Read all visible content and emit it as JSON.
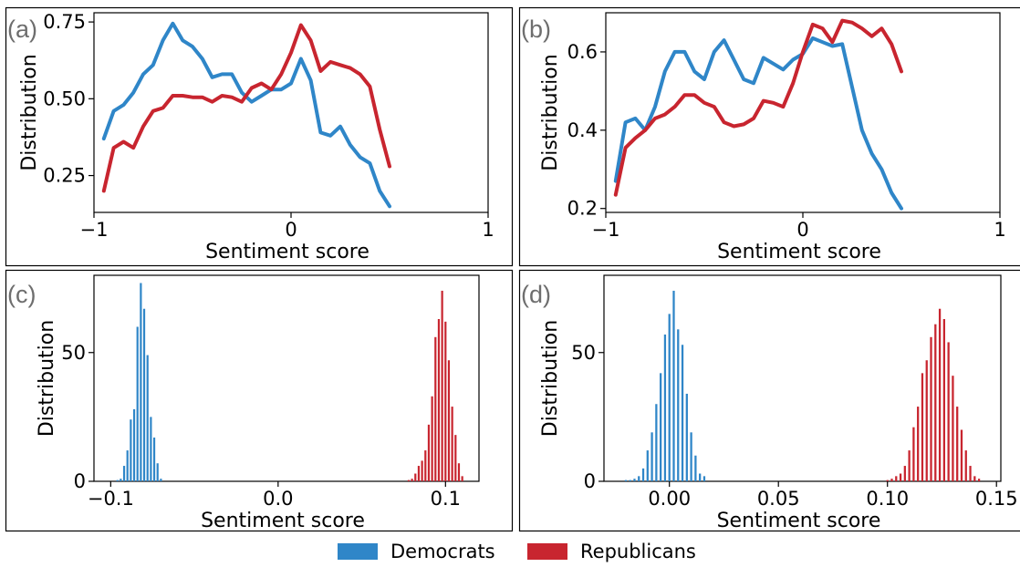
{
  "colors": {
    "democrats": "#2f86c8",
    "republicans": "#c8252f"
  },
  "legend": {
    "democrats": "Democrats",
    "republicans": "Republicans"
  },
  "chart_data": [
    {
      "panel": "(a)",
      "type": "line",
      "xlabel": "Sentiment score",
      "ylabel": "Distribution",
      "xlim": [
        -1,
        1
      ],
      "ylim": [
        0.13,
        0.78
      ],
      "xticks": [
        -1,
        0,
        1
      ],
      "xtick_labels": [
        "−1",
        "0",
        "1"
      ],
      "yticks": [
        0.25,
        0.5,
        0.75
      ],
      "ytick_labels": [
        "0.25",
        "0.50",
        "0.75"
      ],
      "x": [
        -0.95,
        -0.9,
        -0.85,
        -0.8,
        -0.75,
        -0.7,
        -0.65,
        -0.6,
        -0.55,
        -0.5,
        -0.45,
        -0.4,
        -0.35,
        -0.3,
        -0.25,
        -0.2,
        -0.15,
        -0.1,
        -0.05,
        0,
        0.05,
        0.1,
        0.15,
        0.2,
        0.25,
        0.3,
        0.35,
        0.4,
        0.45,
        0.5,
        0.55,
        0.6,
        0.65,
        0.7,
        0.75,
        0.8,
        0.85,
        0.9,
        0.95
      ],
      "series": [
        {
          "name": "Democrats",
          "values": [
            0.37,
            0.46,
            0.48,
            0.52,
            0.58,
            0.61,
            0.69,
            0.745,
            0.69,
            0.67,
            0.63,
            0.57,
            0.58,
            0.58,
            0.52,
            0.49,
            0.51,
            0.53,
            0.53,
            0.55,
            0.63,
            0.56,
            0.39,
            0.38,
            0.41,
            0.35,
            0.31,
            0.29,
            0.2,
            0.15,
            null,
            null,
            null,
            null,
            null,
            null,
            null,
            null,
            null
          ]
        },
        {
          "name": "Republicans",
          "values": [
            0.2,
            0.34,
            0.36,
            0.34,
            0.41,
            0.46,
            0.47,
            0.51,
            0.51,
            0.505,
            0.505,
            0.49,
            0.51,
            0.505,
            0.49,
            0.535,
            0.55,
            0.53,
            0.58,
            0.65,
            0.74,
            0.69,
            0.59,
            0.62,
            0.61,
            0.6,
            0.58,
            0.54,
            0.4,
            0.28,
            null,
            null,
            null,
            null,
            null,
            null,
            null,
            null,
            null
          ]
        }
      ]
    },
    {
      "panel": "(b)",
      "type": "line",
      "xlabel": "Sentiment score",
      "ylabel": "Distribution",
      "xlim": [
        -1,
        1
      ],
      "ylim": [
        0.19,
        0.7
      ],
      "xticks": [
        -1,
        0,
        1
      ],
      "xtick_labels": [
        "−1",
        "0",
        "1"
      ],
      "yticks": [
        0.2,
        0.4,
        0.6
      ],
      "ytick_labels": [
        "0.2",
        "0.4",
        "0.6"
      ],
      "x": [
        -0.95,
        -0.9,
        -0.85,
        -0.8,
        -0.75,
        -0.7,
        -0.65,
        -0.6,
        -0.55,
        -0.5,
        -0.45,
        -0.4,
        -0.35,
        -0.3,
        -0.25,
        -0.2,
        -0.15,
        -0.1,
        -0.05,
        0,
        0.05,
        0.1,
        0.15,
        0.2,
        0.25,
        0.3,
        0.35,
        0.4,
        0.45,
        0.5,
        0.55,
        0.6,
        0.65,
        0.7,
        0.75,
        0.8,
        0.85,
        0.9,
        0.95
      ],
      "series": [
        {
          "name": "Democrats",
          "values": [
            0.27,
            0.42,
            0.43,
            0.4,
            0.46,
            0.55,
            0.6,
            0.6,
            0.55,
            0.53,
            0.6,
            0.63,
            0.58,
            0.53,
            0.52,
            0.585,
            0.57,
            0.555,
            0.58,
            0.595,
            0.635,
            0.625,
            0.615,
            0.62,
            0.51,
            0.4,
            0.34,
            0.3,
            0.24,
            0.2,
            null,
            null,
            null,
            null,
            null,
            null,
            null,
            null,
            null
          ]
        },
        {
          "name": "Republicans",
          "values": [
            0.235,
            0.355,
            0.38,
            0.4,
            0.43,
            0.44,
            0.46,
            0.49,
            0.49,
            0.47,
            0.46,
            0.42,
            0.41,
            0.415,
            0.43,
            0.475,
            0.47,
            0.46,
            0.52,
            0.6,
            0.67,
            0.66,
            0.625,
            0.68,
            0.675,
            0.66,
            0.64,
            0.66,
            0.62,
            0.55,
            null,
            null,
            null,
            null,
            null,
            null,
            null,
            null,
            null
          ]
        }
      ]
    },
    {
      "panel": "(c)",
      "type": "bar",
      "xlabel": "Sentiment score",
      "ylabel": "Distribution",
      "xlim": [
        -0.11,
        0.12
      ],
      "ylim": [
        0,
        80
      ],
      "xticks": [
        -0.1,
        0.0,
        0.1
      ],
      "xtick_labels": [
        "−0.1",
        "0.0",
        "0.1"
      ],
      "yticks": [
        0,
        50
      ],
      "ytick_labels": [
        "0",
        "50"
      ],
      "bar_width": 0.0012,
      "series": [
        {
          "name": "Democrats",
          "x": [
            -0.096,
            -0.094,
            -0.092,
            -0.09,
            -0.088,
            -0.086,
            -0.084,
            -0.082,
            -0.08,
            -0.078,
            -0.076,
            -0.074,
            -0.072,
            -0.07
          ],
          "values": [
            0.5,
            1,
            6,
            12,
            24,
            28,
            60,
            77,
            67,
            49,
            25,
            17,
            7,
            1
          ]
        },
        {
          "name": "Republicans",
          "x": [
            0.078,
            0.08,
            0.082,
            0.084,
            0.086,
            0.088,
            0.09,
            0.092,
            0.094,
            0.096,
            0.098,
            0.1,
            0.102,
            0.104,
            0.106,
            0.108,
            0.11
          ],
          "values": [
            0.5,
            1,
            3,
            6,
            8,
            12,
            22,
            33,
            56,
            63,
            74,
            62,
            47,
            29,
            18,
            7,
            2
          ]
        }
      ]
    },
    {
      "panel": "(d)",
      "type": "bar",
      "xlabel": "Sentiment score",
      "ylabel": "Distribution",
      "xlim": [
        -0.03,
        0.152
      ],
      "ylim": [
        0,
        80
      ],
      "xticks": [
        0.0,
        0.05,
        0.1,
        0.15
      ],
      "xtick_labels": [
        "0.00",
        "0.05",
        "0.10",
        "0.15"
      ],
      "yticks": [
        0,
        50
      ],
      "ytick_labels": [
        "0",
        "50"
      ],
      "bar_width": 0.00095,
      "series": [
        {
          "name": "Democrats",
          "x": [
            -0.02,
            -0.018,
            -0.016,
            -0.014,
            -0.012,
            -0.01,
            -0.008,
            -0.006,
            -0.004,
            -0.002,
            0,
            0.002,
            0.004,
            0.006,
            0.008,
            0.01,
            0.012,
            0.014,
            0.016
          ],
          "values": [
            0.5,
            0.5,
            1,
            2,
            5,
            12,
            19,
            30,
            42,
            57,
            65,
            74,
            59,
            53,
            34,
            19,
            10,
            3,
            2
          ]
        },
        {
          "name": "Republicans",
          "x": [
            0.1,
            0.102,
            0.104,
            0.106,
            0.108,
            0.11,
            0.112,
            0.114,
            0.116,
            0.118,
            0.12,
            0.122,
            0.124,
            0.126,
            0.128,
            0.13,
            0.132,
            0.134,
            0.136,
            0.138,
            0.14,
            0.142
          ],
          "values": [
            0.5,
            1,
            2,
            3,
            6,
            12,
            21,
            29,
            42,
            47,
            56,
            61,
            67,
            63,
            54,
            41,
            29,
            20,
            12,
            6,
            2,
            1
          ]
        }
      ]
    }
  ]
}
